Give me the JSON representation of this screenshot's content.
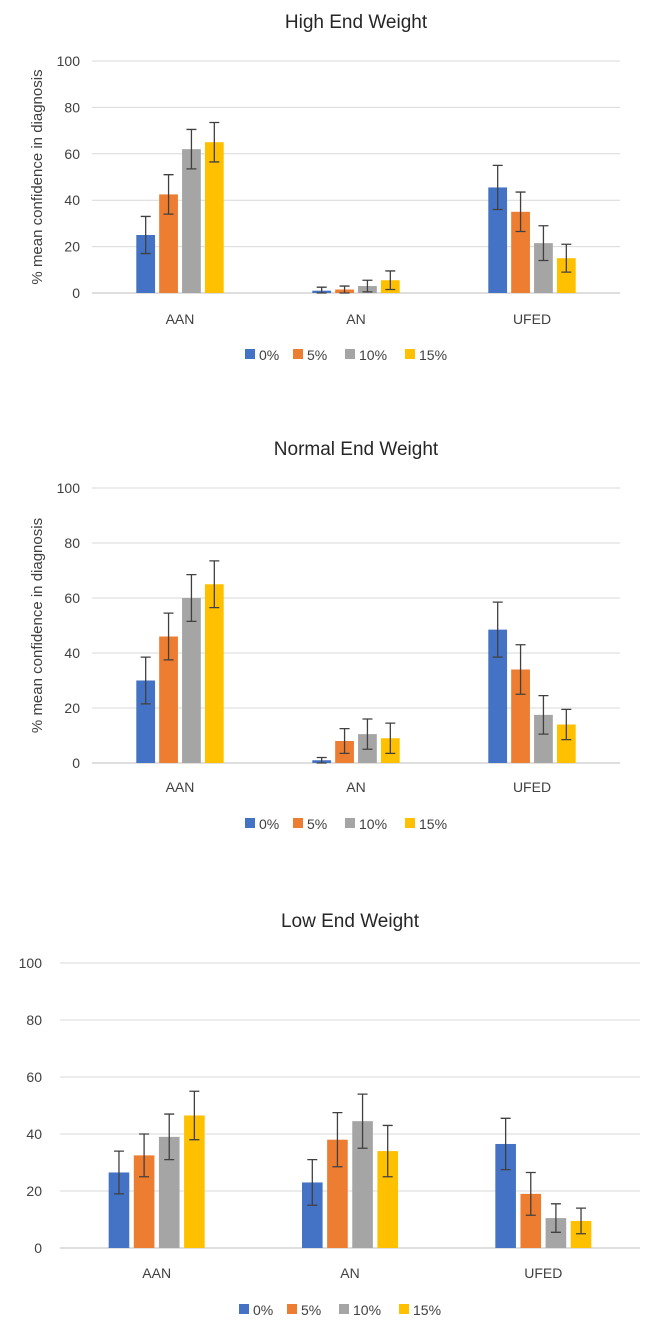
{
  "chart_data": [
    {
      "type": "bar",
      "title": "High End Weight",
      "ylabel": "% mean confidence in diagnosis",
      "ylim": [
        0,
        100
      ],
      "yticks": [
        0,
        20,
        40,
        60,
        80,
        100
      ],
      "categories": [
        "AAN",
        "AN",
        "UFED"
      ],
      "series": [
        {
          "name": "0%",
          "color": "#4472c4",
          "values": [
            25,
            1,
            45.5
          ],
          "errors": [
            8,
            1.5,
            9.5
          ]
        },
        {
          "name": "5%",
          "color": "#ed7d31",
          "values": [
            42.5,
            1.5,
            35
          ],
          "errors": [
            8.5,
            1.5,
            8.5
          ]
        },
        {
          "name": "10%",
          "color": "#a5a5a5",
          "values": [
            62,
            3,
            21.5
          ],
          "errors": [
            8.5,
            2.5,
            7.5
          ]
        },
        {
          "name": "15%",
          "color": "#ffc000",
          "values": [
            65,
            5.5,
            15
          ],
          "errors": [
            8.5,
            4,
            6
          ]
        }
      ],
      "legend": "bottom",
      "grid": true
    },
    {
      "type": "bar",
      "title": "Normal End Weight",
      "ylabel": "% mean confidence in diagnosis",
      "ylim": [
        0,
        100
      ],
      "yticks": [
        0,
        20,
        40,
        60,
        80,
        100
      ],
      "categories": [
        "AAN",
        "AN",
        "UFED"
      ],
      "series": [
        {
          "name": "0%",
          "color": "#4472c4",
          "values": [
            30,
            1,
            48.5
          ],
          "errors": [
            8.5,
            1,
            10
          ]
        },
        {
          "name": "5%",
          "color": "#ed7d31",
          "values": [
            46,
            8,
            34
          ],
          "errors": [
            8.5,
            4.5,
            9
          ]
        },
        {
          "name": "10%",
          "color": "#a5a5a5",
          "values": [
            60,
            10.5,
            17.5
          ],
          "errors": [
            8.5,
            5.5,
            7
          ]
        },
        {
          "name": "15%",
          "color": "#ffc000",
          "values": [
            65,
            9,
            14
          ],
          "errors": [
            8.5,
            5.5,
            5.5
          ]
        }
      ],
      "legend": "bottom",
      "grid": true
    },
    {
      "type": "bar",
      "title": "Low End Weight",
      "ylabel": "",
      "ylim": [
        0,
        100
      ],
      "yticks": [
        0,
        20,
        40,
        60,
        80,
        100
      ],
      "categories": [
        "AAN",
        "AN",
        "UFED"
      ],
      "series": [
        {
          "name": "0%",
          "color": "#4472c4",
          "values": [
            26.5,
            23,
            36.5
          ],
          "errors": [
            7.5,
            8,
            9
          ]
        },
        {
          "name": "5%",
          "color": "#ed7d31",
          "values": [
            32.5,
            38,
            19
          ],
          "errors": [
            7.5,
            9.5,
            7.5
          ]
        },
        {
          "name": "10%",
          "color": "#a5a5a5",
          "values": [
            39,
            44.5,
            10.5
          ],
          "errors": [
            8,
            9.5,
            5
          ]
        },
        {
          "name": "15%",
          "color": "#ffc000",
          "values": [
            46.5,
            34,
            9.5
          ],
          "errors": [
            8.5,
            9,
            4.5
          ]
        }
      ],
      "legend": "bottom",
      "grid": true
    }
  ]
}
